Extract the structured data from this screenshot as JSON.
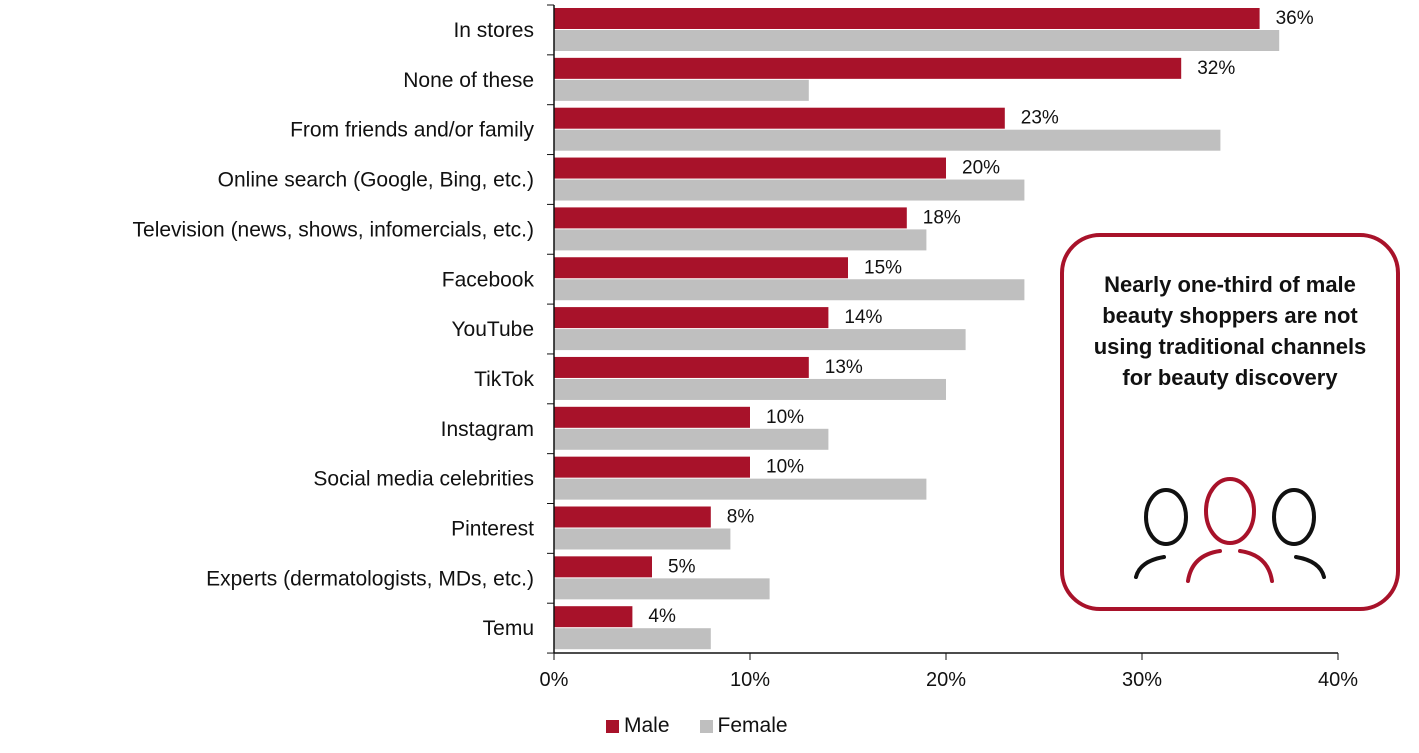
{
  "chart_data": {
    "type": "bar",
    "orientation": "horizontal",
    "categories": [
      "In stores",
      "None of these",
      "From friends and/or family",
      "Online search (Google, Bing, etc.)",
      "Television (news, shows, infomercials, etc.)",
      "Facebook",
      "YouTube",
      "TikTok",
      "Instagram",
      "Social media celebrities",
      "Pinterest",
      "Experts (dermatologists, MDs, etc.)",
      "Temu"
    ],
    "series": [
      {
        "name": "Male",
        "color": "#a8122a",
        "values": [
          36,
          32,
          23,
          20,
          18,
          15,
          14,
          13,
          10,
          10,
          8,
          5,
          4
        ],
        "labels": [
          "36%",
          "32%",
          "23%",
          "20%",
          "18%",
          "15%",
          "14%",
          "13%",
          "10%",
          "10%",
          "8%",
          "5%",
          "4%"
        ]
      },
      {
        "name": "Female",
        "color": "#bfbfbf",
        "values": [
          37,
          13,
          34,
          24,
          19,
          24,
          21,
          20,
          14,
          19,
          9,
          11,
          8
        ]
      }
    ],
    "xlim": [
      0,
      40
    ],
    "xticks": [
      "0%",
      "10%",
      "20%",
      "30%",
      "40%"
    ],
    "legend_position": "bottom",
    "grid": false
  },
  "callout": {
    "text": "Nearly one-third of male beauty shoppers are not using traditional channels for beauty discovery",
    "icon": "people-group-icon",
    "border_color": "#a8122a"
  }
}
